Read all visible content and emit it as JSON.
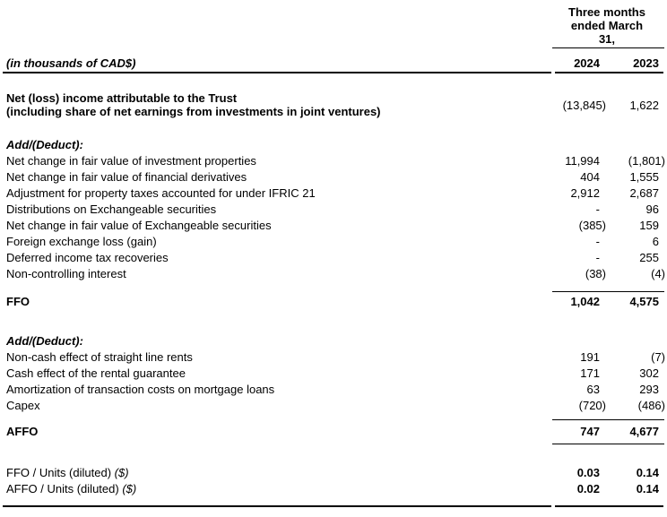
{
  "table": {
    "period_header": "Three months\nended March\n31,",
    "unit_label": "(in thousands of CAD$)",
    "col_headers": [
      "2024",
      "2023"
    ],
    "rows": [
      {
        "type": "data2",
        "label_lines": [
          "Net (loss) income attributable to the Trust",
          "(including share of net earnings from investments in joint ventures)"
        ],
        "v1": "(13,845)",
        "v2": "1,622"
      },
      {
        "type": "spacer",
        "size": "lg"
      },
      {
        "type": "section",
        "label": "Add/(Deduct):"
      },
      {
        "type": "data",
        "label": "Net change in fair value of investment properties",
        "v1": "11,994",
        "v2": "(1,801)"
      },
      {
        "type": "data",
        "label": "Net change in fair value of financial derivatives",
        "v1": "404",
        "v2": "1,555"
      },
      {
        "type": "data",
        "label": "Adjustment for property taxes accounted for under IFRIC 21",
        "v1": "2,912",
        "v2": "2,687"
      },
      {
        "type": "data",
        "label": "Distributions on Exchangeable securities",
        "v1": "-",
        "v2": "96"
      },
      {
        "type": "data",
        "label": "Net change in fair value of Exchangeable securities",
        "v1": "(385)",
        "v2": "159"
      },
      {
        "type": "data",
        "label": "Foreign exchange loss (gain)",
        "v1": "-",
        "v2": "6"
      },
      {
        "type": "data",
        "label": "Deferred income tax recoveries",
        "v1": "-",
        "v2": "255"
      },
      {
        "type": "data",
        "label": "Non-controlling interest",
        "v1": "(38)",
        "v2": "(4)"
      },
      {
        "type": "spacer",
        "size": "sm"
      },
      {
        "type": "total",
        "label": "FFO",
        "v1": "1,042",
        "v2": "4,575",
        "rule_above": true,
        "rule_below": false
      },
      {
        "type": "spacer",
        "size": "xl"
      },
      {
        "type": "section",
        "label": "Add/(Deduct):"
      },
      {
        "type": "data",
        "label": "Non-cash effect of straight line rents",
        "v1": "191",
        "v2": "(7)"
      },
      {
        "type": "data",
        "label": "Cash effect of the rental guarantee",
        "v1": "171",
        "v2": "302"
      },
      {
        "type": "data",
        "label": "Amortization of transaction costs on mortgage loans",
        "v1": "63",
        "v2": "293"
      },
      {
        "type": "data",
        "label": "Capex",
        "v1": "(720)",
        "v2": "(486)"
      },
      {
        "type": "spacer",
        "size": "xs"
      },
      {
        "type": "total",
        "label": "AFFO",
        "v1": "747",
        "v2": "4,677",
        "rule_above": true,
        "rule_below": true,
        "tall": true
      },
      {
        "type": "spacer",
        "size": "md"
      },
      {
        "type": "per_unit",
        "label": "FFO / Units (diluted) ",
        "label_suffix": "($)",
        "v1": "0.03",
        "v2": "0.14"
      },
      {
        "type": "per_unit",
        "label": "AFFO / Units (diluted) ",
        "label_suffix": "($)",
        "v1": "0.02",
        "v2": "0.14"
      }
    ]
  }
}
